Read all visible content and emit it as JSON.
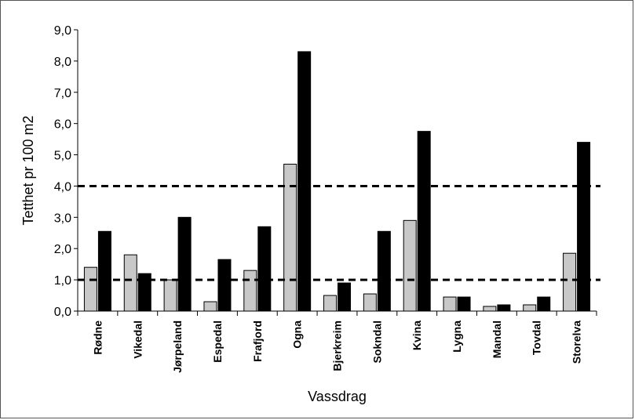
{
  "chart_data": {
    "type": "bar",
    "title": "",
    "xlabel": "Vassdrag",
    "ylabel": "Tetthet pr 100 m2",
    "ylim": [
      0,
      9
    ],
    "yticks": [
      "0,0",
      "1,0",
      "2,0",
      "3,0",
      "4,0",
      "5,0",
      "6,0",
      "7,0",
      "8,0",
      "9,0"
    ],
    "categories": [
      "Rødne",
      "Vikedal",
      "Jørpeland",
      "Espedal",
      "Frafjord",
      "Ogna",
      "Bjerkreim",
      "Sokndal",
      "Kvina",
      "Lygna",
      "Mandal",
      "Tovdal",
      "Storelva"
    ],
    "series": [
      {
        "color": "#c8c8c8",
        "values": [
          1.4,
          1.8,
          1.0,
          0.3,
          1.3,
          4.7,
          0.5,
          0.55,
          2.9,
          0.45,
          0.15,
          0.2,
          1.85
        ]
      },
      {
        "color": "#000000",
        "values": [
          2.55,
          1.2,
          3.0,
          1.65,
          2.7,
          8.3,
          0.9,
          2.55,
          5.75,
          0.45,
          0.2,
          0.45,
          5.4
        ]
      }
    ],
    "reference_lines": [
      4.0,
      1.0
    ],
    "legend": "none",
    "grid": false
  }
}
